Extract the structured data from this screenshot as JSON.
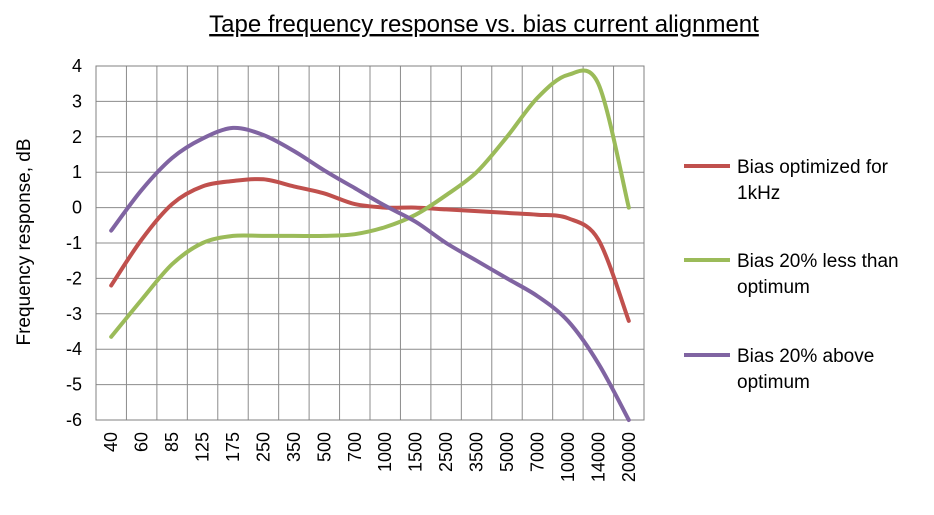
{
  "chart_data": {
    "type": "line",
    "title": "Tape frequency response vs. bias current alignment",
    "xlabel": "",
    "ylabel": "Frequency response, dB",
    "categories": [
      "40",
      "60",
      "85",
      "125",
      "175",
      "250",
      "350",
      "500",
      "700",
      "1000",
      "1500",
      "2500",
      "3500",
      "5000",
      "7000",
      "10000",
      "14000",
      "20000"
    ],
    "ylim": [
      -6,
      4
    ],
    "yticks": [
      4,
      3,
      2,
      1,
      0,
      -1,
      -2,
      -3,
      -4,
      -5,
      -6
    ],
    "grid": true,
    "legend_position": "right",
    "series": [
      {
        "name": "Bias optimized for 1kHz",
        "color": "#c0504d",
        "values": [
          -2.2,
          -0.9,
          0.1,
          0.6,
          0.75,
          0.8,
          0.6,
          0.4,
          0.1,
          0.0,
          0.0,
          -0.05,
          -0.1,
          -0.15,
          -0.2,
          -0.3,
          -0.9,
          -3.2
        ]
      },
      {
        "name": "Bias 20% less than optimum",
        "color": "#9bbb59",
        "values": [
          -3.65,
          -2.6,
          -1.6,
          -1.0,
          -0.8,
          -0.8,
          -0.8,
          -0.8,
          -0.75,
          -0.55,
          -0.2,
          0.35,
          1.0,
          2.0,
          3.1,
          3.75,
          3.5,
          0.0
        ]
      },
      {
        "name": "Bias 20% above optimum",
        "color": "#8064a2",
        "values": [
          -0.65,
          0.5,
          1.4,
          1.95,
          2.25,
          2.05,
          1.6,
          1.05,
          0.55,
          0.05,
          -0.4,
          -1.0,
          -1.5,
          -2.0,
          -2.5,
          -3.2,
          -4.4,
          -6.0
        ]
      }
    ]
  }
}
